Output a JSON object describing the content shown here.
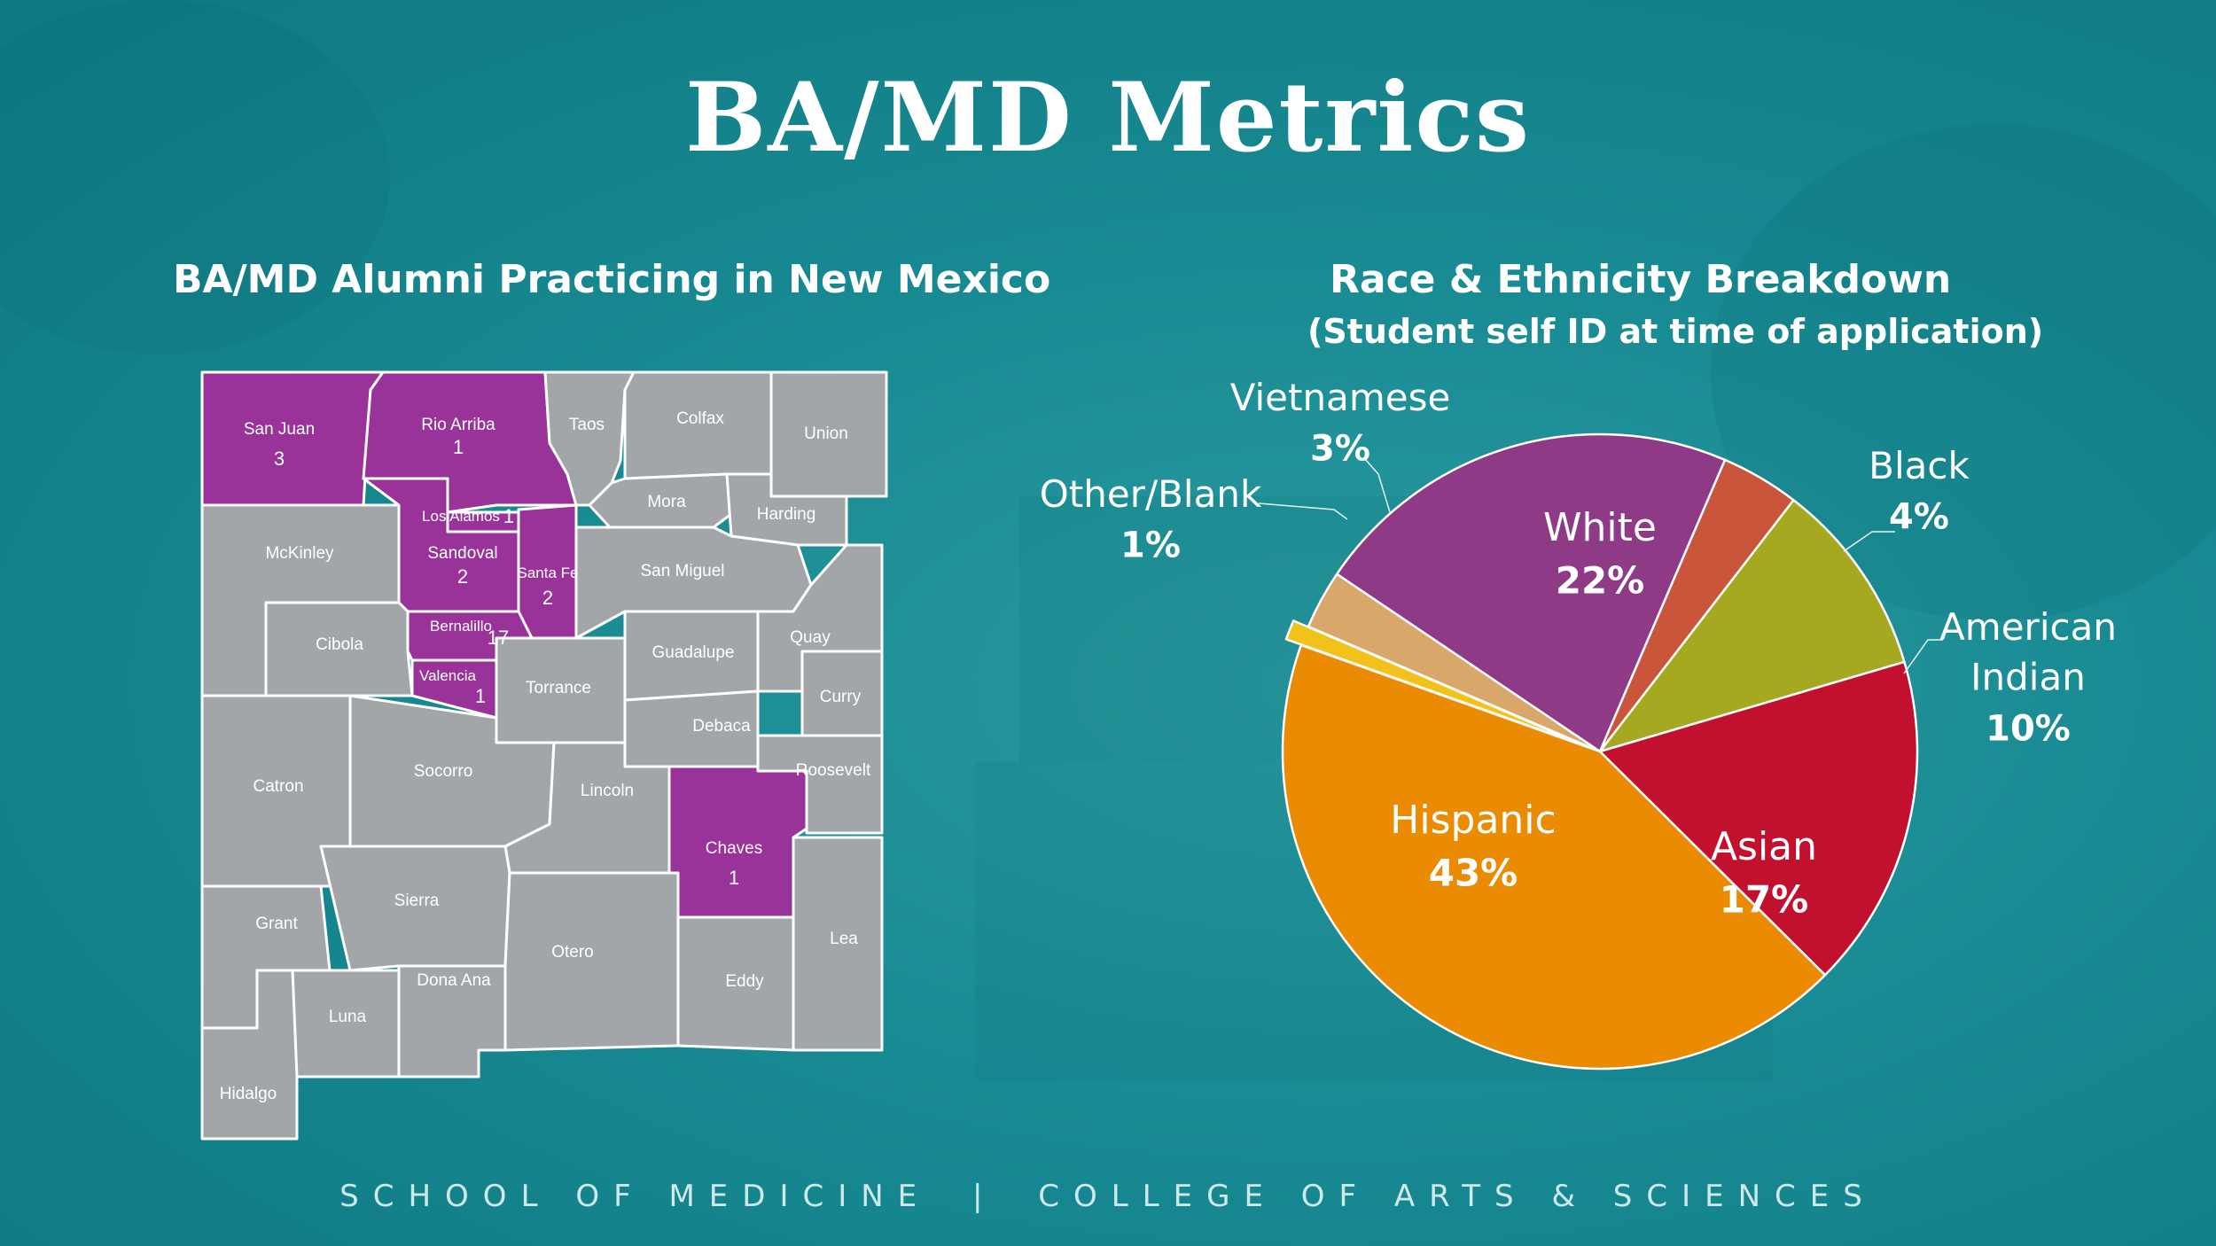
{
  "title": "BA/MD Metrics",
  "map": {
    "title": "BA/MD Alumni Practicing in New Mexico",
    "counties": [
      {
        "name": "San Juan",
        "count": "3",
        "highlight": true
      },
      {
        "name": "Rio Arriba",
        "count": "1",
        "highlight": true
      },
      {
        "name": "Taos",
        "count": "",
        "highlight": false
      },
      {
        "name": "Colfax",
        "count": "",
        "highlight": false
      },
      {
        "name": "Union",
        "count": "",
        "highlight": false
      },
      {
        "name": "Los Alamos",
        "count": "1",
        "highlight": true
      },
      {
        "name": "Mora",
        "count": "",
        "highlight": false
      },
      {
        "name": "Harding",
        "count": "",
        "highlight": false
      },
      {
        "name": "McKinley",
        "count": "",
        "highlight": false
      },
      {
        "name": "Sandoval",
        "count": "2",
        "highlight": true
      },
      {
        "name": "Santa Fe",
        "count": "2",
        "highlight": true
      },
      {
        "name": "San Miguel",
        "count": "",
        "highlight": false
      },
      {
        "name": "Cibola",
        "count": "",
        "highlight": false
      },
      {
        "name": "Bernalillo",
        "count": "17",
        "highlight": true
      },
      {
        "name": "Guadalupe",
        "count": "",
        "highlight": false
      },
      {
        "name": "Quay",
        "count": "",
        "highlight": false
      },
      {
        "name": "Valencia",
        "count": "1",
        "highlight": true
      },
      {
        "name": "Torrance",
        "count": "",
        "highlight": false
      },
      {
        "name": "Curry",
        "count": "",
        "highlight": false
      },
      {
        "name": "Debaca",
        "count": "",
        "highlight": false
      },
      {
        "name": "Catron",
        "count": "",
        "highlight": false
      },
      {
        "name": "Socorro",
        "count": "",
        "highlight": false
      },
      {
        "name": "Lincoln",
        "count": "",
        "highlight": false
      },
      {
        "name": "Roosevelt",
        "count": "",
        "highlight": false
      },
      {
        "name": "Chaves",
        "count": "1",
        "highlight": true
      },
      {
        "name": "Sierra",
        "count": "",
        "highlight": false
      },
      {
        "name": "Grant",
        "count": "",
        "highlight": false
      },
      {
        "name": "Otero",
        "count": "",
        "highlight": false
      },
      {
        "name": "Lea",
        "count": "",
        "highlight": false
      },
      {
        "name": "Dona Ana",
        "count": "",
        "highlight": false
      },
      {
        "name": "Eddy",
        "count": "",
        "highlight": false
      },
      {
        "name": "Luna",
        "count": "",
        "highlight": false
      },
      {
        "name": "Hidalgo",
        "count": "",
        "highlight": false
      }
    ],
    "colors": {
      "highlight": "#993399",
      "base": "#a3a6a8",
      "border": "#ffffff"
    }
  },
  "chart_data": {
    "type": "pie",
    "title": "Race & Ethnicity Breakdown",
    "subtitle": "(Student self ID at time of application)",
    "slices": [
      {
        "label": "White",
        "value": 22,
        "display": "22%",
        "color": "#8e3a86"
      },
      {
        "label": "Black",
        "value": 4,
        "display": "4%",
        "color": "#c9553a"
      },
      {
        "label": "American Indian",
        "value": 10,
        "display": "10%",
        "color": "#a6a820"
      },
      {
        "label": "Asian",
        "value": 17,
        "display": "17%",
        "color": "#c2102f"
      },
      {
        "label": "Hispanic",
        "value": 43,
        "display": "43%",
        "color": "#eb8b02"
      },
      {
        "label": "Other/Blank",
        "value": 1,
        "display": "1%",
        "color": "#f2c21a"
      },
      {
        "label": "Vietnamese",
        "value": 3,
        "display": "3%",
        "color": "#d9a76a"
      }
    ]
  },
  "footer": {
    "left": "SCHOOL OF MEDICINE",
    "separator": "|",
    "right": "COLLEGE OF ARTS & SCIENCES"
  }
}
